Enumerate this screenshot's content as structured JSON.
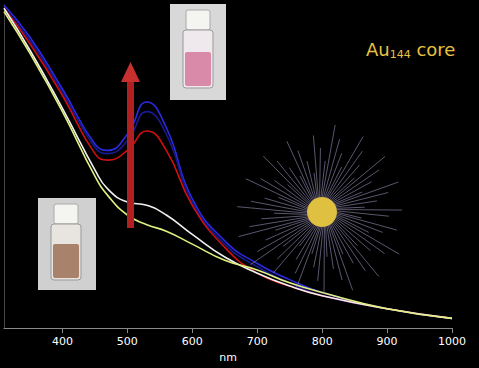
{
  "chart_data": {
    "type": "line",
    "x_label": "nm",
    "annotations": [
      {
        "base": "Au",
        "sub": "144",
        "rest": " core"
      }
    ],
    "xlim": [
      310,
      1000
    ],
    "xticks": [
      400,
      500,
      600,
      700,
      800,
      900,
      1000
    ],
    "ylim": [
      0,
      1
    ],
    "tick_labels": "x",
    "grid": false,
    "x": [
      310,
      350,
      400,
      450,
      470,
      500,
      530,
      560,
      600,
      650,
      700,
      750,
      800,
      900,
      1000
    ],
    "series": [
      {
        "color": "#2a2ae0",
        "values": [
          1.0,
          0.9,
          0.74,
          0.57,
          0.55,
          0.6,
          0.7,
          0.62,
          0.4,
          0.27,
          0.2,
          0.15,
          0.11,
          0.06,
          0.03
        ]
      },
      {
        "color": "#1a1a90",
        "values": [
          0.99,
          0.89,
          0.73,
          0.56,
          0.54,
          0.58,
          0.67,
          0.6,
          0.39,
          0.26,
          0.19,
          0.14,
          0.1,
          0.06,
          0.03
        ]
      },
      {
        "color": "#d01010",
        "values": [
          0.99,
          0.88,
          0.72,
          0.54,
          0.52,
          0.55,
          0.61,
          0.55,
          0.38,
          0.25,
          0.17,
          0.13,
          0.1,
          0.06,
          0.03
        ]
      },
      {
        "color": "#f0f0f0",
        "values": [
          0.99,
          0.86,
          0.68,
          0.49,
          0.43,
          0.39,
          0.38,
          0.35,
          0.29,
          0.22,
          0.17,
          0.13,
          0.1,
          0.06,
          0.03
        ]
      },
      {
        "color": "#e0f080",
        "values": [
          0.98,
          0.85,
          0.67,
          0.47,
          0.41,
          0.35,
          0.32,
          0.3,
          0.26,
          0.21,
          0.18,
          0.14,
          0.11,
          0.06,
          0.03
        ]
      }
    ]
  }
}
